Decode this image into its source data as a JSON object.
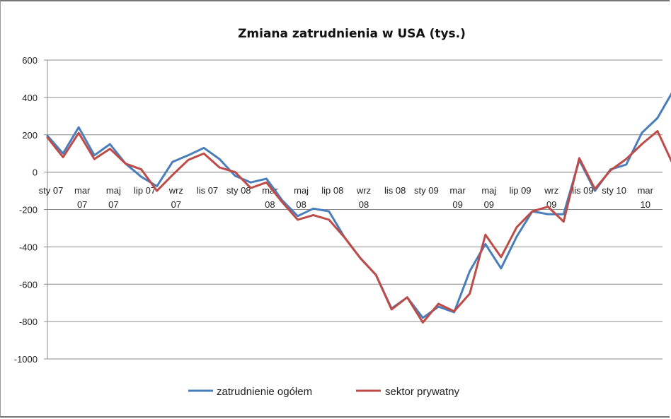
{
  "chart_data": {
    "type": "line",
    "title": "Zmiana zatrudnienia w USA (tys.)",
    "xlabel": "",
    "ylabel": "",
    "ylim": [
      -1000,
      600
    ],
    "yticks": [
      600,
      400,
      200,
      0,
      -200,
      -400,
      -600,
      -800,
      -1000
    ],
    "grid": true,
    "legend_position": "bottom",
    "x_tick_labels": [
      {
        "i": 0,
        "lines": [
          "sty 07"
        ]
      },
      {
        "i": 2,
        "lines": [
          "mar",
          "07"
        ]
      },
      {
        "i": 4,
        "lines": [
          "maj",
          "07"
        ]
      },
      {
        "i": 6,
        "lines": [
          "lip 07"
        ]
      },
      {
        "i": 8,
        "lines": [
          "wrz",
          "07"
        ]
      },
      {
        "i": 10,
        "lines": [
          "lis 07"
        ]
      },
      {
        "i": 12,
        "lines": [
          "sty 08"
        ]
      },
      {
        "i": 14,
        "lines": [
          "mar",
          "08"
        ]
      },
      {
        "i": 16,
        "lines": [
          "maj",
          "08"
        ]
      },
      {
        "i": 18,
        "lines": [
          "lip 08"
        ]
      },
      {
        "i": 20,
        "lines": [
          "wrz",
          "08"
        ]
      },
      {
        "i": 22,
        "lines": [
          "lis 08"
        ]
      },
      {
        "i": 24,
        "lines": [
          "sty 09"
        ]
      },
      {
        "i": 26,
        "lines": [
          "mar",
          "09"
        ]
      },
      {
        "i": 28,
        "lines": [
          "maj",
          "09"
        ]
      },
      {
        "i": 30,
        "lines": [
          "lip 09"
        ]
      },
      {
        "i": 32,
        "lines": [
          "wrz",
          "09"
        ]
      },
      {
        "i": 34,
        "lines": [
          "lis 09"
        ]
      },
      {
        "i": 36,
        "lines": [
          "sty 10"
        ]
      },
      {
        "i": 38,
        "lines": [
          "mar",
          "10"
        ]
      }
    ],
    "series": [
      {
        "name": "zatrudnienie ogółem",
        "color": "#4a7ebb",
        "values": [
          195,
          100,
          240,
          90,
          150,
          45,
          -25,
          -75,
          55,
          90,
          130,
          70,
          -20,
          -55,
          -35,
          -150,
          -235,
          -195,
          -210,
          -350,
          -460,
          -550,
          -730,
          -670,
          -780,
          -720,
          -750,
          -530,
          -385,
          -515,
          -345,
          -210,
          -225,
          -225,
          65,
          -100,
          15,
          40,
          210,
          290,
          435
        ]
      },
      {
        "name": "sektor prywatny",
        "color": "#be4b48",
        "values": [
          185,
          80,
          210,
          70,
          125,
          45,
          15,
          -100,
          -15,
          65,
          100,
          25,
          0,
          -85,
          -55,
          -160,
          -255,
          -230,
          -255,
          -350,
          -460,
          -550,
          -735,
          -670,
          -805,
          -705,
          -745,
          -650,
          -335,
          -455,
          -295,
          -210,
          -185,
          -265,
          75,
          -90,
          10,
          70,
          150,
          220,
          40
        ]
      }
    ]
  }
}
